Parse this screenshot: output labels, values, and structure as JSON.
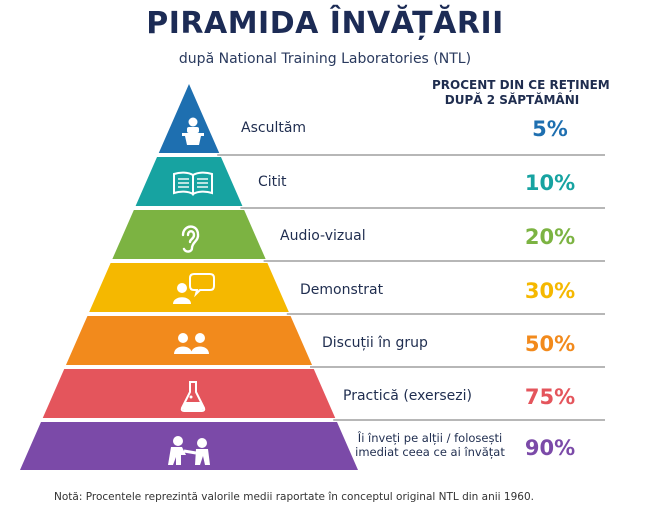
{
  "header": {
    "title": "PIRAMIDA ÎNVĂȚĂRII",
    "subtitle": "după National Training Laboratories (NTL)"
  },
  "column_header": {
    "line1": "PROCENT DIN CE REȚINEM",
    "line2": "DUPĂ 2 SĂPTĂMÂNI"
  },
  "levels": [
    {
      "label": "Ascultăm",
      "percent": "5%",
      "color": "#1e6fb0",
      "icon": "lecturer-icon"
    },
    {
      "label": "Citit",
      "percent": "10%",
      "color": "#17a3a1",
      "icon": "book-icon"
    },
    {
      "label": "Audio-vizual",
      "percent": "20%",
      "color": "#7cb342",
      "icon": "ear-icon"
    },
    {
      "label": "Demonstrat",
      "percent": "30%",
      "color": "#f5b800",
      "icon": "demo-speech-icon"
    },
    {
      "label": "Discuții în grup",
      "percent": "50%",
      "color": "#f28a1c",
      "icon": "group-icon"
    },
    {
      "label": "Practică (exersezi)",
      "percent": "75%",
      "color": "#e4555c",
      "icon": "flask-icon"
    },
    {
      "label": "Îi înveți pe alții / folosești imediat ceea ce ai învățat",
      "percent": "90%",
      "color": "#7b4aa8",
      "icon": "teaching-icon"
    }
  ],
  "note": "Notă: Procentele reprezintă valorile medii raportate în conceptul original NTL din anii 1960."
}
